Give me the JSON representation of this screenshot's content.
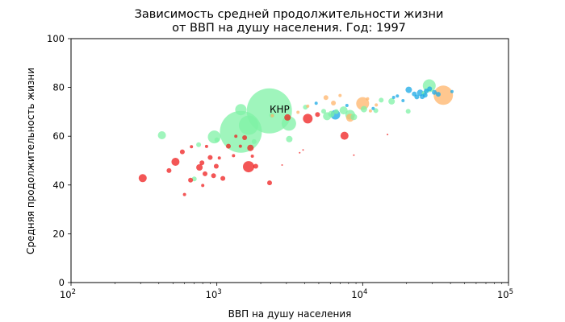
{
  "chart_data": {
    "type": "scatter",
    "title_line1": "Зависимость средней продолжительности жизни",
    "title_line2": "от ВВП на душу населения. Год: 1997",
    "xlabel": "ВВП на душу населения",
    "ylabel": "Средняя продолжительность жизни",
    "x_scale": "log",
    "xlim": [
      100,
      100000
    ],
    "ylim": [
      0,
      100
    ],
    "x_ticks": [
      {
        "base": "10",
        "exp": "2",
        "value": 100
      },
      {
        "base": "10",
        "exp": "3",
        "value": 1000
      },
      {
        "base": "10",
        "exp": "4",
        "value": 10000
      },
      {
        "base": "10",
        "exp": "5",
        "value": 100000
      }
    ],
    "y_ticks": [
      {
        "label": "0",
        "value": 0
      },
      {
        "label": "20",
        "value": 20
      },
      {
        "label": "40",
        "value": 40
      },
      {
        "label": "60",
        "value": 60
      },
      {
        "label": "80",
        "value": 80
      },
      {
        "label": "100",
        "value": 100
      }
    ],
    "grid": false,
    "annotation": {
      "text": "КНР",
      "x": 2300,
      "y": 71
    },
    "colors": {
      "red": "#ef1d1d",
      "green": "#7ff2a5",
      "blue": "#18a8e6",
      "orange": "#ffb46a"
    },
    "points": [
      {
        "x": 2290,
        "y": 70.4,
        "size": 28,
        "color": "green"
      },
      {
        "x": 1460,
        "y": 61.8,
        "size": 26,
        "color": "green"
      },
      {
        "x": 1650,
        "y": 64.5,
        "size": 12,
        "color": "green"
      },
      {
        "x": 1460,
        "y": 70.9,
        "size": 7,
        "color": "green"
      },
      {
        "x": 960,
        "y": 59.7,
        "size": 8,
        "color": "green"
      },
      {
        "x": 420,
        "y": 60.4,
        "size": 5,
        "color": "green"
      },
      {
        "x": 3120,
        "y": 65.2,
        "size": 9,
        "color": "green"
      },
      {
        "x": 3140,
        "y": 58.8,
        "size": 4,
        "color": "green"
      },
      {
        "x": 2380,
        "y": 68.6,
        "size": 3,
        "color": "green"
      },
      {
        "x": 1800,
        "y": 57.8,
        "size": 3,
        "color": "green"
      },
      {
        "x": 4050,
        "y": 71.9,
        "size": 3,
        "color": "green"
      },
      {
        "x": 5400,
        "y": 70.2,
        "size": 3,
        "color": "green"
      },
      {
        "x": 5700,
        "y": 68.2,
        "size": 5,
        "color": "green"
      },
      {
        "x": 6100,
        "y": 69.1,
        "size": 4,
        "color": "green"
      },
      {
        "x": 6600,
        "y": 70.1,
        "size": 3,
        "color": "green"
      },
      {
        "x": 7400,
        "y": 70.6,
        "size": 5,
        "color": "green"
      },
      {
        "x": 8200,
        "y": 68.8,
        "size": 6,
        "color": "green"
      },
      {
        "x": 8700,
        "y": 67.9,
        "size": 4,
        "color": "green"
      },
      {
        "x": 10200,
        "y": 71.1,
        "size": 4,
        "color": "green"
      },
      {
        "x": 12300,
        "y": 70.5,
        "size": 3,
        "color": "green"
      },
      {
        "x": 15800,
        "y": 74.3,
        "size": 4,
        "color": "green"
      },
      {
        "x": 20500,
        "y": 70.2,
        "size": 3,
        "color": "green"
      },
      {
        "x": 28600,
        "y": 80.7,
        "size": 8,
        "color": "green"
      },
      {
        "x": 26400,
        "y": 77.6,
        "size": 3,
        "color": "green"
      },
      {
        "x": 13400,
        "y": 74.8,
        "size": 3,
        "color": "green"
      },
      {
        "x": 700,
        "y": 42.5,
        "size": 3,
        "color": "green"
      },
      {
        "x": 750,
        "y": 56.5,
        "size": 3,
        "color": "green"
      },
      {
        "x": 1000,
        "y": 58.5,
        "size": 3,
        "color": "green"
      },
      {
        "x": 310,
        "y": 42.8,
        "size": 5,
        "color": "red"
      },
      {
        "x": 470,
        "y": 45.9,
        "size": 3,
        "color": "red"
      },
      {
        "x": 520,
        "y": 49.5,
        "size": 5,
        "color": "red"
      },
      {
        "x": 580,
        "y": 53.6,
        "size": 3,
        "color": "red"
      },
      {
        "x": 600,
        "y": 36.1,
        "size": 2,
        "color": "red"
      },
      {
        "x": 660,
        "y": 42.0,
        "size": 3,
        "color": "red"
      },
      {
        "x": 670,
        "y": 55.7,
        "size": 2,
        "color": "red"
      },
      {
        "x": 760,
        "y": 47.2,
        "size": 4,
        "color": "red"
      },
      {
        "x": 790,
        "y": 49.1,
        "size": 3,
        "color": "red"
      },
      {
        "x": 800,
        "y": 39.8,
        "size": 2,
        "color": "red"
      },
      {
        "x": 830,
        "y": 44.6,
        "size": 3,
        "color": "red"
      },
      {
        "x": 900,
        "y": 51.3,
        "size": 3,
        "color": "red"
      },
      {
        "x": 950,
        "y": 43.8,
        "size": 3,
        "color": "red"
      },
      {
        "x": 990,
        "y": 47.7,
        "size": 3,
        "color": "red"
      },
      {
        "x": 1040,
        "y": 51.1,
        "size": 2,
        "color": "red"
      },
      {
        "x": 1100,
        "y": 42.7,
        "size": 3,
        "color": "red"
      },
      {
        "x": 1200,
        "y": 55.9,
        "size": 3,
        "color": "red"
      },
      {
        "x": 1300,
        "y": 52.0,
        "size": 2,
        "color": "red"
      },
      {
        "x": 1450,
        "y": 55.9,
        "size": 2,
        "color": "red"
      },
      {
        "x": 1550,
        "y": 59.4,
        "size": 3,
        "color": "red"
      },
      {
        "x": 1650,
        "y": 47.5,
        "size": 7,
        "color": "red"
      },
      {
        "x": 1700,
        "y": 55.2,
        "size": 4,
        "color": "red"
      },
      {
        "x": 1850,
        "y": 47.7,
        "size": 3,
        "color": "red"
      },
      {
        "x": 2300,
        "y": 40.9,
        "size": 3,
        "color": "red"
      },
      {
        "x": 2800,
        "y": 48.2,
        "size": 1,
        "color": "red"
      },
      {
        "x": 3050,
        "y": 67.7,
        "size": 4,
        "color": "red"
      },
      {
        "x": 3700,
        "y": 53.2,
        "size": 1,
        "color": "red"
      },
      {
        "x": 3900,
        "y": 54.4,
        "size": 1,
        "color": "red"
      },
      {
        "x": 4200,
        "y": 67.2,
        "size": 6,
        "color": "red"
      },
      {
        "x": 4900,
        "y": 68.9,
        "size": 3,
        "color": "red"
      },
      {
        "x": 7500,
        "y": 60.2,
        "size": 5,
        "color": "red"
      },
      {
        "x": 8700,
        "y": 52.2,
        "size": 1,
        "color": "red"
      },
      {
        "x": 14800,
        "y": 60.7,
        "size": 1,
        "color": "red"
      },
      {
        "x": 1750,
        "y": 51.8,
        "size": 2,
        "color": "red"
      },
      {
        "x": 1350,
        "y": 60.0,
        "size": 2,
        "color": "red"
      },
      {
        "x": 850,
        "y": 55.8,
        "size": 2,
        "color": "red"
      },
      {
        "x": 35700,
        "y": 76.8,
        "size": 12,
        "color": "orange"
      },
      {
        "x": 10000,
        "y": 73.4,
        "size": 8,
        "color": "orange"
      },
      {
        "x": 8200,
        "y": 67.6,
        "size": 5,
        "color": "orange"
      },
      {
        "x": 5600,
        "y": 75.8,
        "size": 3,
        "color": "orange"
      },
      {
        "x": 6300,
        "y": 73.6,
        "size": 3,
        "color": "orange"
      },
      {
        "x": 7000,
        "y": 76.7,
        "size": 2,
        "color": "orange"
      },
      {
        "x": 10800,
        "y": 75.3,
        "size": 2,
        "color": "orange"
      },
      {
        "x": 11300,
        "y": 70.4,
        "size": 2,
        "color": "orange"
      },
      {
        "x": 12400,
        "y": 72.8,
        "size": 2,
        "color": "orange"
      },
      {
        "x": 4200,
        "y": 72.3,
        "size": 2,
        "color": "orange"
      },
      {
        "x": 3600,
        "y": 69.8,
        "size": 2,
        "color": "orange"
      },
      {
        "x": 2400,
        "y": 68.4,
        "size": 2,
        "color": "orange"
      },
      {
        "x": 6500,
        "y": 68.8,
        "size": 6,
        "color": "blue"
      },
      {
        "x": 20700,
        "y": 79.0,
        "size": 4,
        "color": "blue"
      },
      {
        "x": 22600,
        "y": 77.3,
        "size": 3,
        "color": "blue"
      },
      {
        "x": 23500,
        "y": 76.1,
        "size": 3,
        "color": "blue"
      },
      {
        "x": 24800,
        "y": 77.8,
        "size": 4,
        "color": "blue"
      },
      {
        "x": 25600,
        "y": 76.2,
        "size": 3,
        "color": "blue"
      },
      {
        "x": 26800,
        "y": 76.8,
        "size": 3,
        "color": "blue"
      },
      {
        "x": 27300,
        "y": 78.5,
        "size": 3,
        "color": "blue"
      },
      {
        "x": 28800,
        "y": 79.4,
        "size": 3,
        "color": "blue"
      },
      {
        "x": 31000,
        "y": 78.0,
        "size": 3,
        "color": "blue"
      },
      {
        "x": 33000,
        "y": 77.2,
        "size": 3,
        "color": "blue"
      },
      {
        "x": 41000,
        "y": 78.3,
        "size": 2,
        "color": "blue"
      },
      {
        "x": 17300,
        "y": 76.5,
        "size": 2,
        "color": "blue"
      },
      {
        "x": 18900,
        "y": 74.6,
        "size": 2,
        "color": "blue"
      },
      {
        "x": 16300,
        "y": 75.9,
        "size": 2,
        "color": "blue"
      },
      {
        "x": 7800,
        "y": 72.6,
        "size": 2,
        "color": "blue"
      },
      {
        "x": 11800,
        "y": 71.4,
        "size": 2,
        "color": "blue"
      },
      {
        "x": 4800,
        "y": 73.5,
        "size": 2,
        "color": "blue"
      }
    ]
  }
}
